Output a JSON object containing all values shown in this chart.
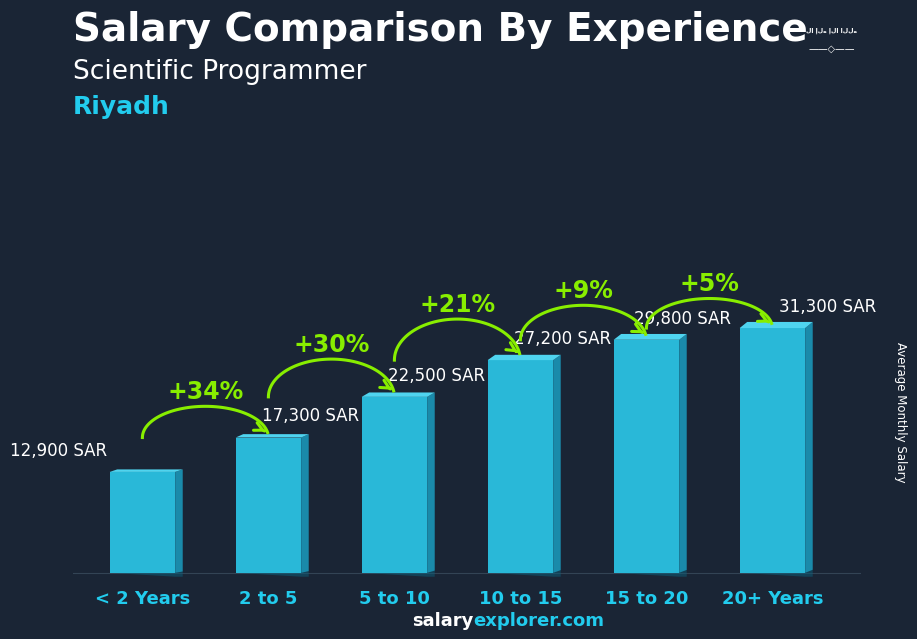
{
  "title": "Salary Comparison By Experience",
  "subtitle": "Scientific Programmer",
  "city": "Riyadh",
  "categories": [
    "< 2 Years",
    "2 to 5",
    "5 to 10",
    "10 to 15",
    "15 to 20",
    "20+ Years"
  ],
  "values": [
    12900,
    17300,
    22500,
    27200,
    29800,
    31300
  ],
  "value_labels": [
    "12,900 SAR",
    "17,300 SAR",
    "22,500 SAR",
    "27,200 SAR",
    "29,800 SAR",
    "31,300 SAR"
  ],
  "pct_changes": [
    "+34%",
    "+30%",
    "+21%",
    "+9%",
    "+5%"
  ],
  "bar_color_face": "#29b8d8",
  "bar_color_top": "#4fd4ef",
  "bar_color_side": "#1a8aaa",
  "bar_color_shadow": "#0d5f7a",
  "bg_color": "#1a2535",
  "text_color_white": "#ffffff",
  "text_color_green": "#88ee00",
  "text_color_cyan": "#22ccee",
  "footer_salary": "salary",
  "footer_explorer": "explorer.com",
  "ylabel": "Average Monthly Salary",
  "ylim": [
    0,
    42000
  ],
  "title_fontsize": 28,
  "subtitle_fontsize": 19,
  "city_fontsize": 18,
  "value_fontsize": 12,
  "pct_fontsize": 17,
  "cat_fontsize": 13,
  "flag_color": "#3a9a3a"
}
